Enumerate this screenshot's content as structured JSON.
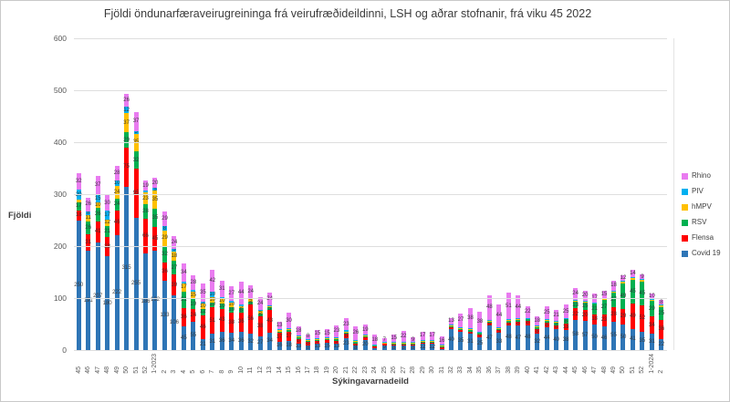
{
  "chart_data": {
    "type": "bar",
    "stacked": true,
    "title": "Fjöldi öndunarfæraveirugreininga frá veirufræðideildinni, LSH og aðrar stofnanir, frá viku 45 2022",
    "xlabel": "Sýkingavarnadeild",
    "ylabel": "Fjöldi",
    "ylim": [
      0,
      600
    ],
    "yticks": [
      0,
      100,
      200,
      300,
      400,
      500,
      600
    ],
    "grid": true,
    "legend_position": "right",
    "legend_order": [
      "Rhino",
      "PIV",
      "hMPV",
      "RSV",
      "Flensa",
      "Covid 19"
    ],
    "categories": [
      "45",
      "46",
      "47",
      "48",
      "49",
      "50",
      "51",
      "52",
      "1-2023",
      "2",
      "3",
      "4",
      "5",
      "6",
      "7",
      "8",
      "9",
      "10",
      "11",
      "12",
      "13",
      "14",
      "15",
      "16",
      "17",
      "18",
      "19",
      "20",
      "21",
      "22",
      "23",
      "24",
      "25",
      "26",
      "27",
      "28",
      "29",
      "30",
      "31",
      "32",
      "33",
      "34",
      "35",
      "36",
      "37",
      "38",
      "39",
      "40",
      "41",
      "42",
      "43",
      "44",
      "45",
      "46",
      "47",
      "48",
      "49",
      "50",
      "51",
      "52",
      "1-2024",
      "2"
    ],
    "series": [
      {
        "name": "Covid 19",
        "color": "#2E75B6",
        "values": [
          250,
          191,
          207,
          180,
          222,
          315,
          255,
          186,
          192,
          133,
          106,
          45,
          55,
          21,
          31,
          36,
          34,
          36,
          32,
          27,
          34,
          16,
          18,
          13,
          8,
          13,
          15,
          13,
          23,
          8,
          20,
          4,
          9,
          8,
          8,
          8,
          12,
          12,
          2,
          40,
          35,
          31,
          25,
          47,
          33,
          48,
          47,
          48,
          32,
          44,
          40,
          38,
          58,
          57,
          50,
          46,
          55,
          50,
          41,
          35,
          31,
          22
        ]
      },
      {
        "name": "Flensa",
        "color": "#FF0000",
        "values": [
          18,
          31,
          41,
          38,
          46,
          75,
          95,
          66,
          45,
          36,
          39,
          36,
          24,
          46,
          51,
          43,
          38,
          36,
          56,
          38,
          43,
          17,
          17,
          8,
          8,
          5,
          4,
          5,
          8,
          5,
          4,
          3,
          3,
          3,
          3,
          3,
          3,
          3,
          4,
          4,
          4,
          5,
          5,
          5,
          5,
          5,
          8,
          8,
          8,
          8,
          8,
          13,
          22,
          20,
          18,
          23,
          28,
          29,
          49,
          52,
          34,
          36
        ]
      },
      {
        "name": "RSV",
        "color": "#00B050",
        "values": [
          17,
          26,
          26,
          21,
          24,
          29,
          32,
          28,
          35,
          32,
          27,
          31,
          19,
          12,
          10,
          10,
          10,
          8,
          5,
          5,
          5,
          3,
          3,
          3,
          2,
          2,
          2,
          3,
          3,
          3,
          2,
          2,
          2,
          2,
          2,
          2,
          2,
          2,
          2,
          2,
          2,
          3,
          3,
          3,
          3,
          3,
          3,
          3,
          4,
          4,
          5,
          8,
          13,
          15,
          21,
          27,
          27,
          49,
          45,
          45,
          29,
          25
        ]
      },
      {
        "name": "hMPV",
        "color": "#FFC000",
        "values": [
          4,
          11,
          10,
          12,
          24,
          37,
          35,
          23,
          35,
          29,
          18,
          17,
          15,
          10,
          10,
          10,
          10,
          5,
          5,
          5,
          3,
          3,
          2,
          2,
          2,
          2,
          2,
          2,
          2,
          2,
          2,
          1,
          1,
          1,
          1,
          1,
          1,
          1,
          1,
          2,
          2,
          2,
          2,
          2,
          2,
          2,
          2,
          2,
          2,
          2,
          2,
          2,
          2,
          2,
          2,
          3,
          3,
          3,
          3,
          3,
          3,
          3
        ]
      },
      {
        "name": "PIV",
        "color": "#00B0F0",
        "values": [
          20,
          8,
          15,
          17,
          10,
          12,
          5,
          4,
          5,
          8,
          5,
          3,
          3,
          5,
          10,
          3,
          3,
          3,
          3,
          3,
          2,
          2,
          2,
          2,
          2,
          2,
          2,
          2,
          2,
          2,
          2,
          1,
          1,
          1,
          1,
          1,
          1,
          1,
          1,
          1,
          1,
          1,
          1,
          1,
          1,
          1,
          1,
          1,
          1,
          1,
          1,
          1,
          1,
          1,
          1,
          1,
          2,
          2,
          2,
          2,
          2,
          2
        ]
      },
      {
        "name": "Rhino",
        "color": "#E97BF0",
        "values": [
          32,
          26,
          37,
          30,
          28,
          26,
          37,
          19,
          20,
          29,
          24,
          34,
          28,
          35,
          42,
          31,
          27,
          44,
          24,
          24,
          24,
          13,
          30,
          18,
          8,
          15,
          15,
          23,
          23,
          26,
          19,
          18,
          7,
          15,
          22,
          9,
          17,
          17,
          16,
          13,
          27,
          38,
          38,
          48,
          44,
          51,
          44,
          22,
          18,
          25,
          21,
          25,
          24,
          20,
          17,
          15,
          18,
          12,
          14,
          9,
          10,
          8
        ]
      }
    ],
    "label_min_value": 5
  }
}
